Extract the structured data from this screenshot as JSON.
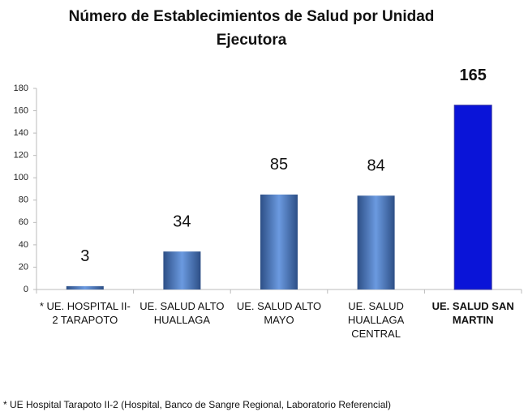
{
  "chart_data": {
    "type": "bar",
    "title": "Número de Establecimientos de Salud por Unidad Ejecutora",
    "categories": [
      "* UE. HOSPITAL II-2 TARAPOTO",
      "UE. SALUD ALTO HUALLAGA",
      "UE. SALUD ALTO MAYO",
      "UE. SALUD HUALLAGA CENTRAL",
      "UE. SALUD SAN MARTIN"
    ],
    "values": [
      3,
      34,
      85,
      84,
      165
    ],
    "colors": [
      "#4a78b8",
      "#4a78b8",
      "#4a78b8",
      "#4a78b8",
      "#0a14d8"
    ],
    "ylim": [
      0,
      180
    ],
    "yticks": [
      0,
      20,
      40,
      60,
      80,
      100,
      120,
      140,
      160,
      180
    ],
    "grid": false,
    "note": "* UE Hospital Tarapoto II-2 (Hospital, Banco de Sangre Regional, Laboratorio Referencial)"
  }
}
